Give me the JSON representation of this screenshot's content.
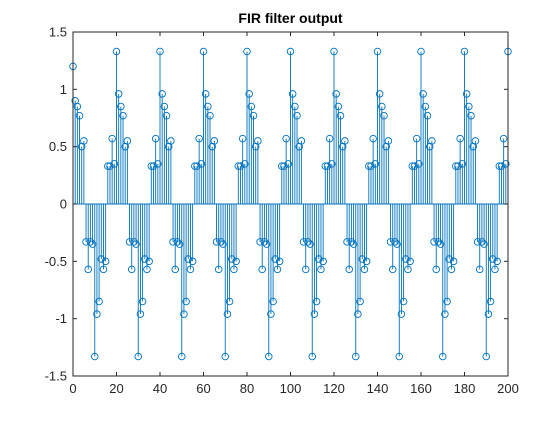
{
  "chart_data": {
    "type": "stem",
    "title": "FIR filter output",
    "xlabel": "",
    "ylabel": "",
    "xlim": [
      0,
      200
    ],
    "ylim": [
      -1.5,
      1.5
    ],
    "xticks": [
      "0",
      "20",
      "40",
      "60",
      "80",
      "100",
      "120",
      "140",
      "160",
      "180",
      "200"
    ],
    "yticks": [
      "1.5",
      "1",
      "0.5",
      "0",
      "-0.5",
      "-1",
      "-1.5"
    ],
    "grid": false,
    "legend": "none",
    "period": 20,
    "first_period": [
      1.2,
      0.9,
      0.85,
      0.77,
      0.5,
      0.55,
      -0.33,
      -0.57,
      -0.33,
      -0.35,
      -1.33,
      -0.96,
      -0.85,
      -0.48,
      -0.57,
      -0.5,
      0.33,
      0.33,
      0.57,
      0.35
    ],
    "cycle_values": [
      1.33,
      0.96,
      0.85,
      0.77,
      0.5,
      0.55,
      -0.33,
      -0.57,
      -0.33,
      -0.35,
      -1.33,
      -0.96,
      -0.85,
      -0.48,
      -0.57,
      -0.5,
      0.33,
      0.33,
      0.57,
      0.35
    ],
    "last_value": 1.33,
    "colors": {
      "stem": "#0072bd",
      "axes": "#262626"
    }
  }
}
